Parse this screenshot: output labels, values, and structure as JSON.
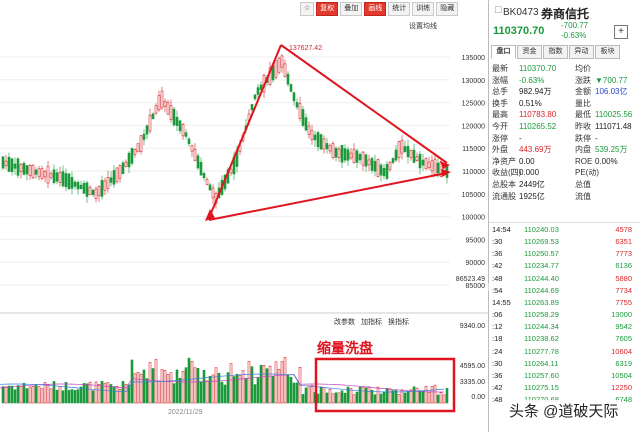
{
  "toolbar": {
    "items": [
      "复权",
      "叠加",
      "画线",
      "统计",
      "训练",
      "隐藏"
    ],
    "settings_label": "设置均线"
  },
  "chart": {
    "y_axis_labels": [
      "135000",
      "130000",
      "125000",
      "120000",
      "115000",
      "110000",
      "105000",
      "100000",
      "95000",
      "90000",
      "86523.49",
      "85000"
    ],
    "high_label": "137627.42",
    "indicator_toolbar": [
      "改参数",
      "加指标",
      "换指标"
    ],
    "volume_axis_labels": [
      "9340.00",
      "4595.00",
      "3335.00",
      "0.00"
    ],
    "annotation_text": "缩量洗盘",
    "bottom_date": "2022/11/29"
  },
  "quote": {
    "code": "BK0473",
    "name": "券商信托",
    "price": "110370.70",
    "change": "-700.77",
    "change_pct": "-0.63%",
    "tabs": [
      "盘口",
      "资金",
      "指数",
      "异动",
      "板块"
    ],
    "rows": [
      {
        "l1": "最新",
        "v1": "110370.70",
        "c1": "g",
        "l2": "均价",
        "v2": "",
        "c2": "k"
      },
      {
        "l1": "涨幅",
        "v1": "-0.63%",
        "c1": "g",
        "l2": "涨跌",
        "v2": "▼700.77",
        "c2": "g"
      },
      {
        "l1": "总手",
        "v1": "982.94万",
        "c1": "k",
        "l2": "金额",
        "v2": "106.03亿",
        "c2": "b"
      },
      {
        "l1": "换手",
        "v1": "0.51%",
        "c1": "k",
        "l2": "量比",
        "v2": "",
        "c2": "k"
      },
      {
        "l1": "最高",
        "v1": "110783.80",
        "c1": "r",
        "l2": "最低",
        "v2": "110025.56",
        "c2": "g"
      },
      {
        "l1": "今开",
        "v1": "110265.52",
        "c1": "g",
        "l2": "昨收",
        "v2": "111071.48",
        "c2": "k"
      },
      {
        "l1": "涨停",
        "v1": "-",
        "c1": "k",
        "l2": "跌停",
        "v2": "-",
        "c2": "k"
      },
      {
        "l1": "外盘",
        "v1": "443.69万",
        "c1": "r",
        "l2": "内盘",
        "v2": "539.25万",
        "c2": "g"
      },
      {
        "l1": "净资产",
        "v1": "0.00",
        "c1": "k",
        "l2": "ROE",
        "v2": "0.00%",
        "c2": "k"
      },
      {
        "l1": "收益(四)",
        "v1": "0.000",
        "c1": "k",
        "l2": "PE(动)",
        "v2": "",
        "c2": "k"
      },
      {
        "l1": "总股本",
        "v1": "2449亿",
        "c1": "k",
        "l2": "总值",
        "v2": "",
        "c2": "k"
      },
      {
        "l1": "流通股",
        "v1": "1925亿",
        "c1": "k",
        "l2": "流值",
        "v2": "",
        "c2": "k"
      }
    ],
    "ticks": [
      {
        "t": "14:54",
        "p": "110240.03",
        "pc": "g",
        "v": "4578",
        "vc": "r"
      },
      {
        "t": ":30",
        "p": "110269.53",
        "pc": "g",
        "v": "6351",
        "vc": "r"
      },
      {
        "t": ":36",
        "p": "110250.57",
        "pc": "g",
        "v": "7773",
        "vc": "r"
      },
      {
        "t": ":42",
        "p": "110234.77",
        "pc": "g",
        "v": "6136",
        "vc": "g"
      },
      {
        "t": ":48",
        "p": "110244.40",
        "pc": "g",
        "v": "5880",
        "vc": "r"
      },
      {
        "t": ":54",
        "p": "110244.69",
        "pc": "g",
        "v": "7734",
        "vc": "r"
      },
      {
        "t": "14:55",
        "p": "110263.89",
        "pc": "g",
        "v": "7755",
        "vc": "r"
      },
      {
        "t": ":06",
        "p": "110258.29",
        "pc": "g",
        "v": "13000",
        "vc": "g"
      },
      {
        "t": ":12",
        "p": "110244.34",
        "pc": "g",
        "v": "9542",
        "vc": "g"
      },
      {
        "t": ":18",
        "p": "110238.62",
        "pc": "g",
        "v": "7605",
        "vc": "g"
      },
      {
        "t": ":24",
        "p": "110277.78",
        "pc": "g",
        "v": "10604",
        "vc": "r"
      },
      {
        "t": ":30",
        "p": "110264.11",
        "pc": "g",
        "v": "6319",
        "vc": "g"
      },
      {
        "t": ":36",
        "p": "110257.60",
        "pc": "g",
        "v": "10504",
        "vc": "g"
      },
      {
        "t": ":42",
        "p": "110275.15",
        "pc": "g",
        "v": "12250",
        "vc": "r"
      },
      {
        "t": ":48",
        "p": "110270.68",
        "pc": "g",
        "v": "6748",
        "vc": "g"
      }
    ]
  },
  "watermark": "头条 @道破天际",
  "colors": {
    "up": "#d6262a",
    "down": "#1a9a3b",
    "annotation": "#e0141e"
  }
}
